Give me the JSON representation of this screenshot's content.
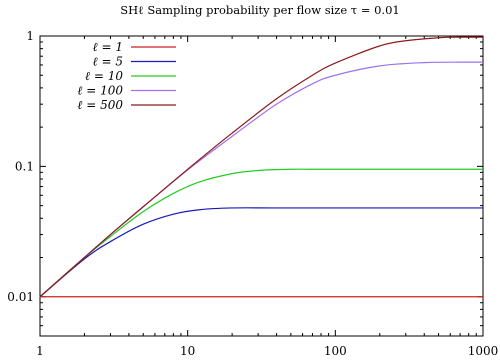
{
  "chart_data": {
    "type": "line",
    "title": "SHℓ Sampling probability per flow size τ = 0.01",
    "xlabel": "",
    "ylabel": "",
    "x_scale": "log",
    "y_scale": "log",
    "xlim": [
      1,
      1000
    ],
    "ylim": [
      0.005,
      1
    ],
    "x_ticks": [
      {
        "value": 1,
        "label": "1"
      },
      {
        "value": 10,
        "label": "10"
      },
      {
        "value": 100,
        "label": "100"
      },
      {
        "value": 1000,
        "label": "1000"
      }
    ],
    "y_ticks": [
      {
        "value": 0.01,
        "label": "0.01"
      },
      {
        "value": 0.1,
        "label": "0.1"
      },
      {
        "value": 1,
        "label": "1"
      }
    ],
    "grid": false,
    "legend_position": "top-left",
    "series": [
      {
        "name": "ℓ = 1",
        "color": "#cc2222",
        "x": [
          1,
          10,
          100,
          1000
        ],
        "y": [
          0.01,
          0.01,
          0.01,
          0.01
        ]
      },
      {
        "name": "ℓ = 5",
        "color": "#1a1ab8",
        "x": [
          1,
          2,
          3,
          5,
          8,
          12,
          20,
          40,
          100,
          1000
        ],
        "y": [
          0.01,
          0.0195,
          0.0265,
          0.036,
          0.043,
          0.0465,
          0.048,
          0.048,
          0.048,
          0.048
        ]
      },
      {
        "name": "ℓ = 10",
        "color": "#22cc22",
        "x": [
          1,
          2,
          3,
          5,
          8,
          12,
          20,
          30,
          50,
          100,
          1000
        ],
        "y": [
          0.01,
          0.02,
          0.029,
          0.045,
          0.062,
          0.076,
          0.088,
          0.093,
          0.095,
          0.095,
          0.095
        ]
      },
      {
        "name": "ℓ = 100",
        "color": "#a070ee",
        "x": [
          1,
          2,
          3,
          5,
          10,
          20,
          40,
          70,
          100,
          200,
          400,
          700,
          1000
        ],
        "y": [
          0.01,
          0.02,
          0.03,
          0.049,
          0.094,
          0.17,
          0.3,
          0.43,
          0.5,
          0.59,
          0.625,
          0.63,
          0.63
        ]
      },
      {
        "name": "ℓ = 500",
        "color": "#8b1a1a",
        "x": [
          1,
          2,
          3,
          5,
          10,
          20,
          40,
          70,
          100,
          200,
          300,
          500,
          700,
          1000
        ],
        "y": [
          0.01,
          0.02,
          0.03,
          0.049,
          0.095,
          0.18,
          0.33,
          0.5,
          0.62,
          0.84,
          0.92,
          0.97,
          0.98,
          0.98
        ]
      }
    ]
  }
}
